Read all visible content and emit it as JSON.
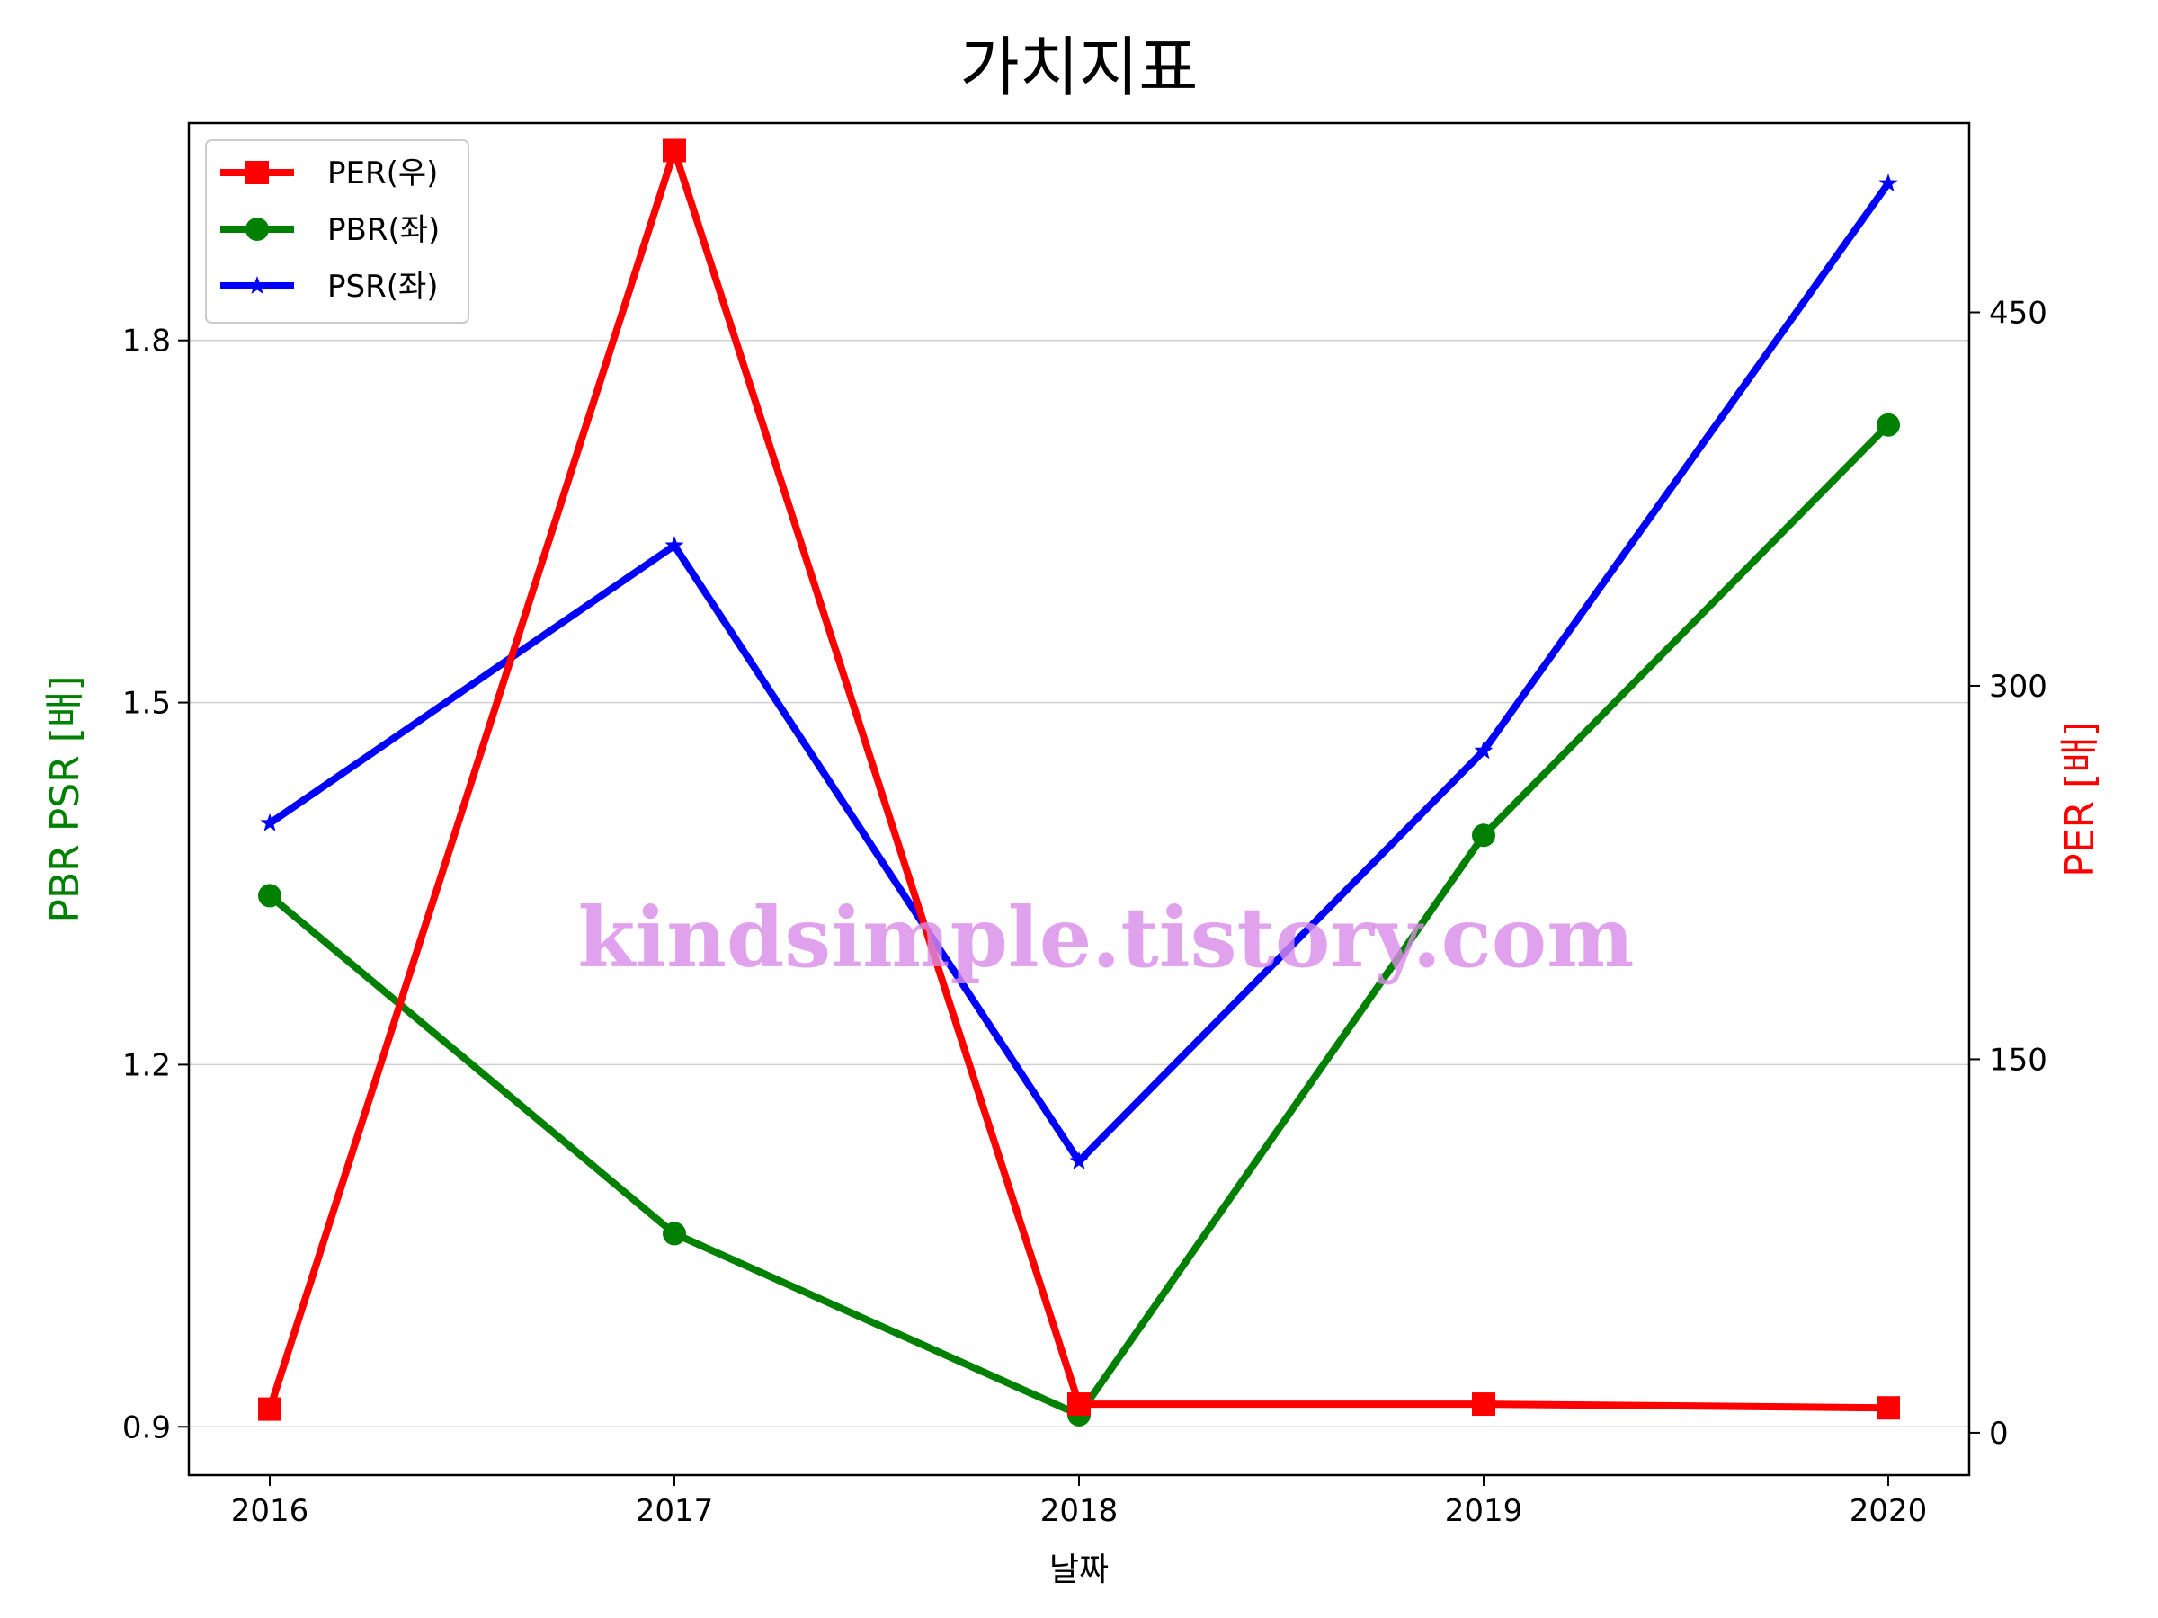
{
  "chart_data": {
    "type": "line",
    "title": "가치지표",
    "xlabel": "날짜",
    "ylabel_left": "PBR PSR [배]",
    "ylabel_right": "PER [배]",
    "x": [
      "2016",
      "2017",
      "2018",
      "2019",
      "2020"
    ],
    "ylim_left": [
      0.86,
      1.98
    ],
    "ylim_right": [
      -17,
      526
    ],
    "yticks_left": [
      "0.9",
      "1.2",
      "1.5",
      "1.8"
    ],
    "yticks_right": [
      "0",
      "150",
      "300",
      "450"
    ],
    "grid": "horizontal",
    "legend_position": "top-left",
    "series": [
      {
        "name": "PER(우)",
        "axis": "right",
        "color": "#ff0000",
        "marker": "square",
        "values": [
          9.5,
          515,
          11.5,
          11.5,
          10
        ]
      },
      {
        "name": "PBR(좌)",
        "axis": "left",
        "color": "#008000",
        "marker": "circle",
        "values": [
          1.34,
          1.06,
          0.91,
          1.39,
          1.73
        ]
      },
      {
        "name": "PSR(좌)",
        "axis": "left",
        "color": "#0000ff",
        "marker": "star",
        "values": [
          1.4,
          1.63,
          1.12,
          1.46,
          1.93
        ]
      }
    ]
  },
  "watermark": "kindsimple.tistory.com"
}
